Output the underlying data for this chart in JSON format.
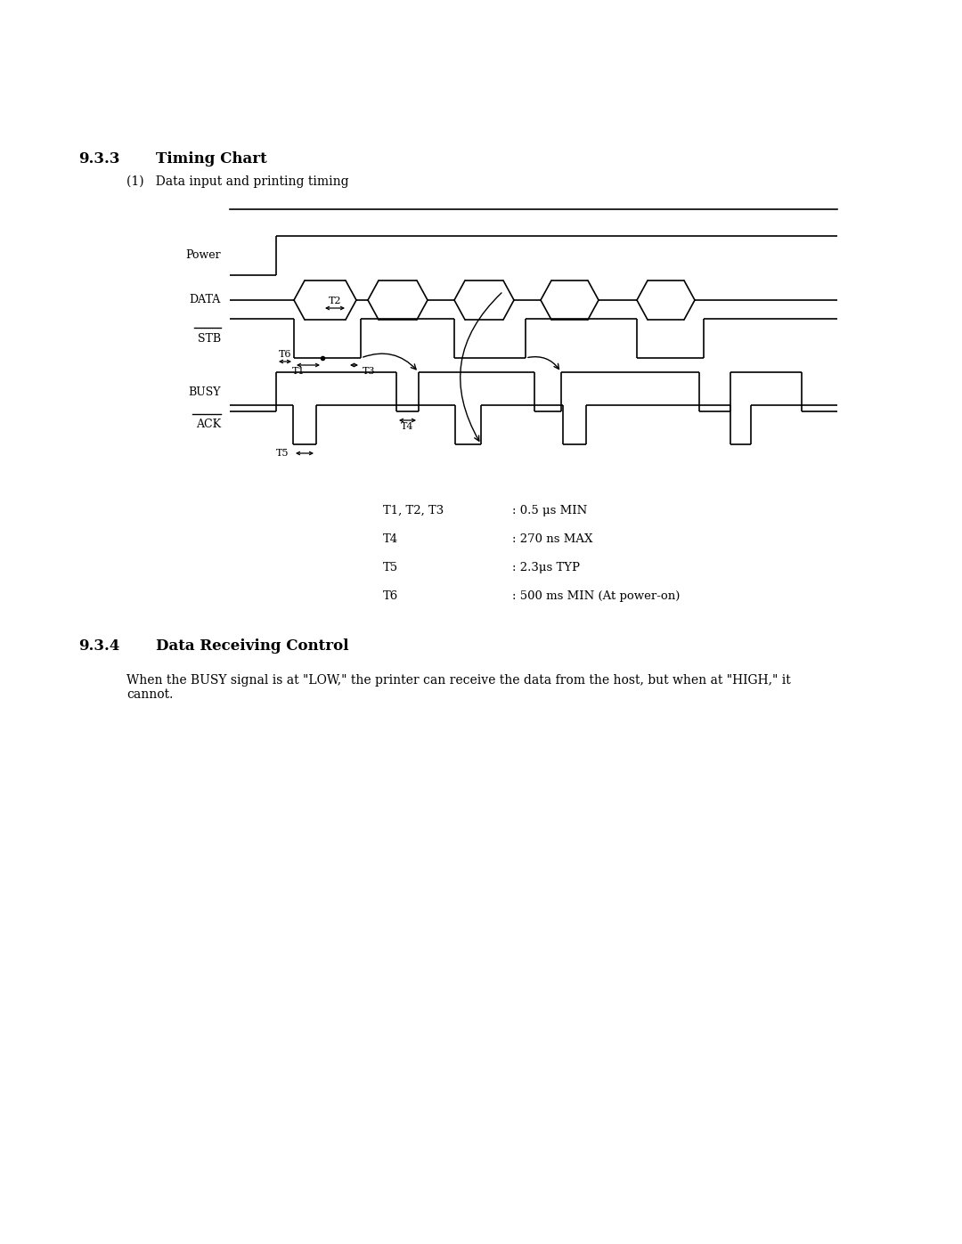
{
  "title_section": "9.3.3",
  "title_text": "Timing Chart",
  "subtitle": "(1)   Data input and printing timing",
  "section2_num": "9.3.4",
  "section2_title": "Data Receiving Control",
  "section2_body": "When the BUSY signal is at \"LOW,\" the printer can receive the data from the host, but when at \"HIGH,\" it\ncannot.",
  "timing_labels": [
    "T1, T2, T3",
    "T4",
    "T5",
    "T6"
  ],
  "timing_values": [
    ": 0.5 μs MIN",
    ": 270 ns MAX",
    ": 2.3μs TYP",
    ": 500 ms MIN (At power-on)"
  ],
  "signal_labels": [
    "Power",
    "DATA",
    "STB",
    "BUSY",
    "ACK"
  ],
  "bg_color": "#ffffff",
  "line_color": "#000000",
  "font_size_heading": 12,
  "font_size_body": 10,
  "font_size_signal": 9,
  "font_size_timing": 9
}
